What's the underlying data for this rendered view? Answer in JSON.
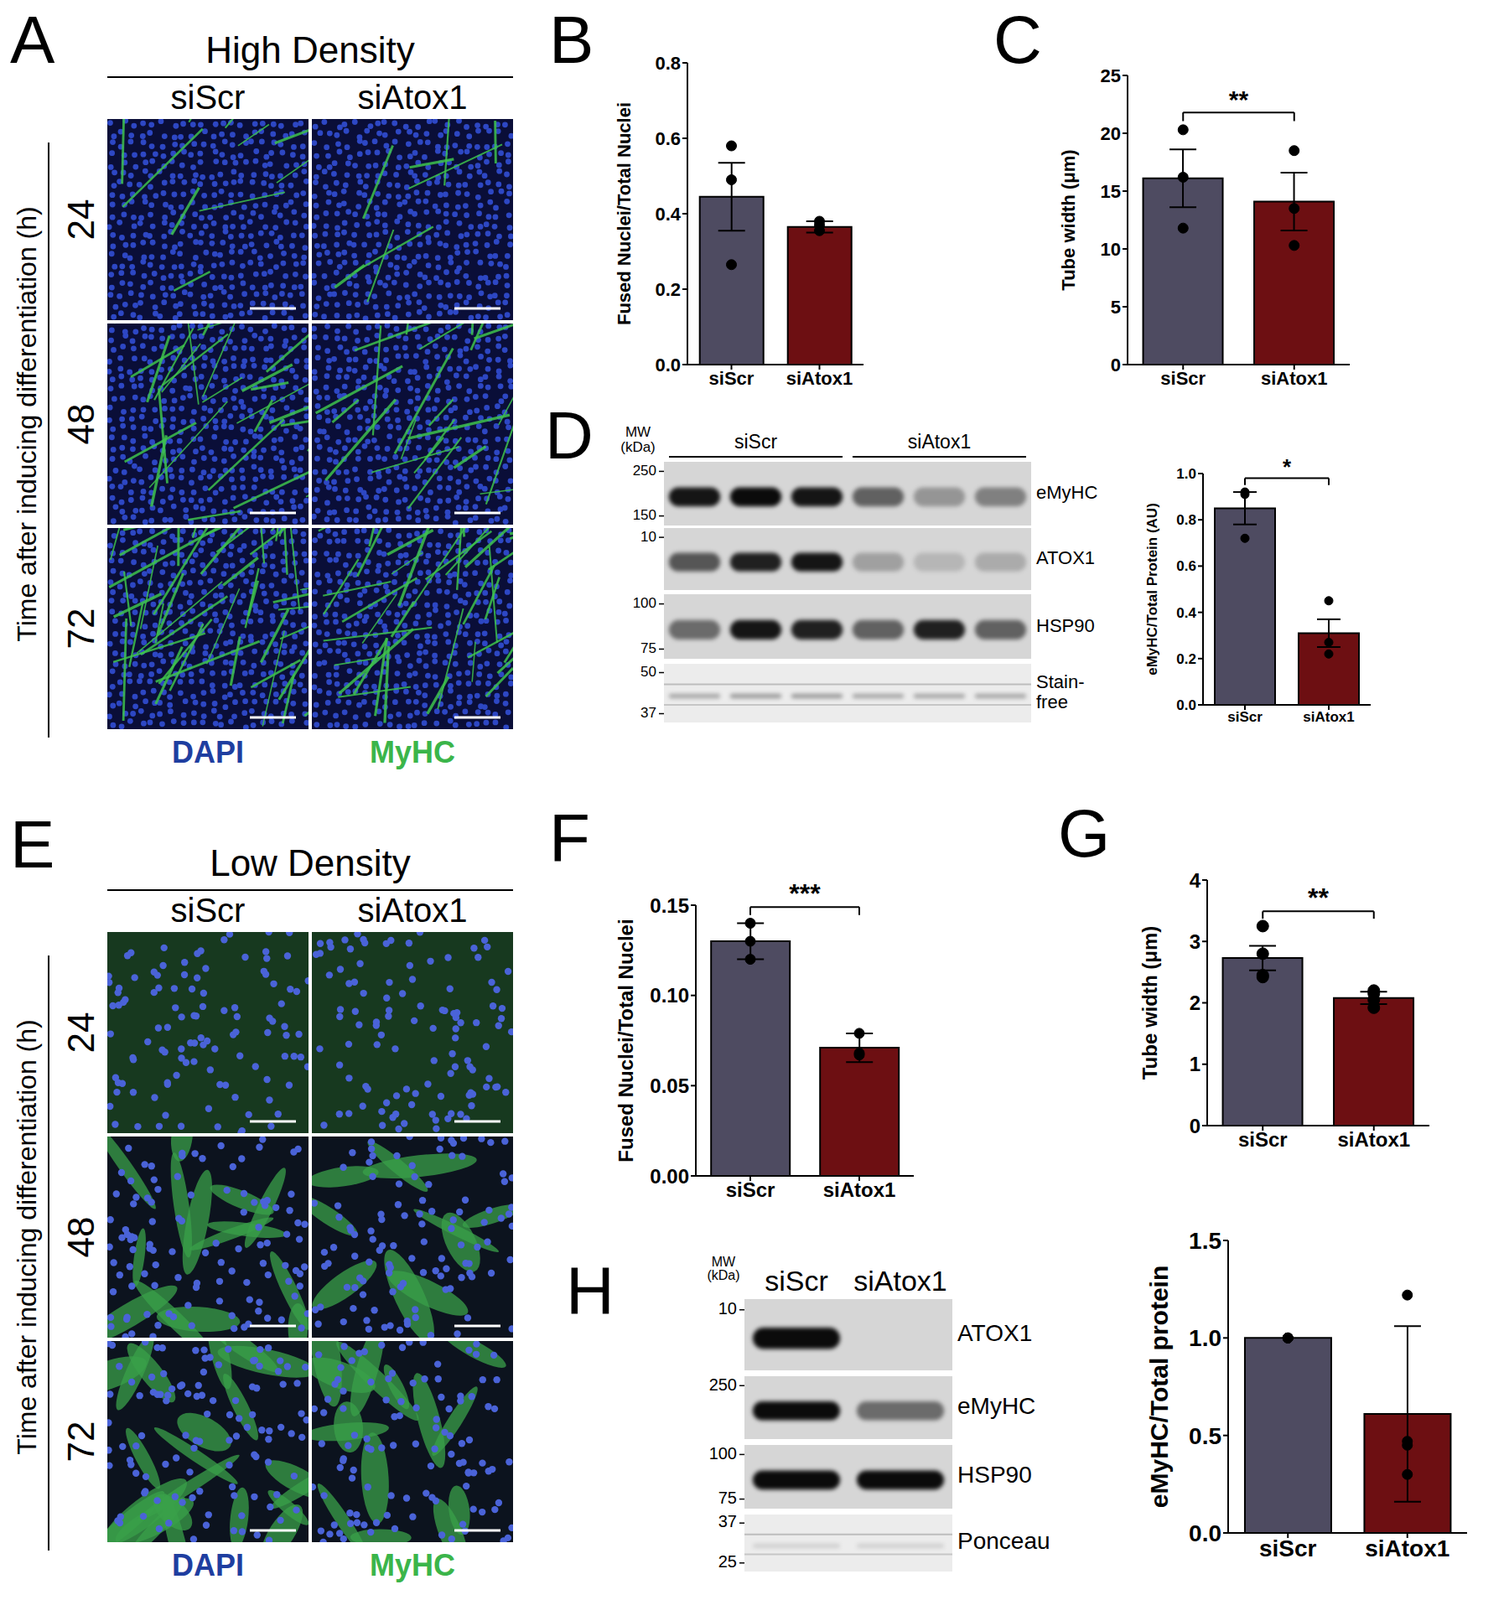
{
  "chart_data": [
    {
      "panel": "B",
      "type": "bar",
      "y_label": "Fused Nuclei/Total Nuclei",
      "categories": [
        "siScr",
        "siAtox1"
      ],
      "values": [
        0.445,
        0.365
      ],
      "errors": [
        0.09,
        0.015
      ],
      "points": [
        [
          0.58,
          0.49,
          0.265
        ],
        [
          0.38,
          0.37,
          0.355
        ]
      ],
      "colors": [
        "#4e4b61",
        "#6d0f12"
      ],
      "ylim": [
        0,
        0.8
      ],
      "yticks": [
        {
          "value": 0,
          "label": "0.0"
        },
        0.2,
        0.4,
        0.6,
        0.8
      ]
    },
    {
      "panel": "C",
      "type": "bar",
      "y_label": "Tube width (μm)",
      "categories": [
        "siScr",
        "siAtox1"
      ],
      "values": [
        16.1,
        14.1
      ],
      "errors": [
        2.5,
        2.5
      ],
      "points": [
        [
          20.3,
          16.2,
          11.8
        ],
        [
          18.5,
          13.5,
          10.3
        ]
      ],
      "colors": [
        "#4e4b61",
        "#6d0f12"
      ],
      "ylim": [
        0,
        25
      ],
      "yticks": [
        0,
        5,
        10,
        15,
        20,
        25
      ],
      "significance": "**"
    },
    {
      "panel": "D",
      "type": "bar",
      "y_label": "eMyHC/Total Protein (AU)",
      "categories": [
        "siScr",
        "siAtox1"
      ],
      "values": [
        0.85,
        0.31
      ],
      "errors": [
        0.07,
        0.06
      ],
      "points": [
        [
          0.92,
          0.91,
          0.72
        ],
        [
          0.45,
          0.27,
          0.22
        ]
      ],
      "colors": [
        "#4e4b61",
        "#6d0f12"
      ],
      "ylim": [
        0,
        1
      ],
      "yticks": [
        {
          "value": 0,
          "label": "0.0"
        },
        0.2,
        0.4,
        0.6,
        0.8,
        {
          "value": 1,
          "label": "1.0"
        }
      ],
      "significance": "*"
    },
    {
      "panel": "F",
      "type": "bar",
      "y_label": "Fused Nuclei/Total Nuclei",
      "categories": [
        "siScr",
        "siAtox1"
      ],
      "values": [
        0.13,
        0.071
      ],
      "errors": [
        0.01,
        0.008
      ],
      "points": [
        [
          0.14,
          0.13,
          0.12
        ],
        [
          0.079,
          0.068,
          0.067
        ]
      ],
      "colors": [
        "#4e4b61",
        "#6d0f12"
      ],
      "ylim": [
        0,
        0.15
      ],
      "yticks": [
        {
          "value": 0,
          "label": "0.00"
        },
        0.05,
        {
          "value": 0.1,
          "label": "0.10"
        },
        0.15
      ],
      "significance": "***"
    },
    {
      "panel": "G",
      "type": "bar",
      "y_label": "Tube width (μm)",
      "categories": [
        "siScr",
        "siAtox1"
      ],
      "values": [
        2.73,
        2.08
      ],
      "errors": [
        0.2,
        0.1
      ],
      "points": [
        [
          3.25,
          2.8,
          2.45,
          2.42
        ],
        [
          2.2,
          2.15,
          2.05,
          1.92
        ]
      ],
      "colors": [
        "#4e4b61",
        "#6d0f12"
      ],
      "ylim": [
        0,
        4
      ],
      "yticks": [
        0,
        1,
        2,
        3,
        4
      ],
      "significance": "**"
    },
    {
      "panel": "H",
      "type": "bar",
      "y_label": "eMyHC/Total protein",
      "categories": [
        "siScr",
        "siAtox1"
      ],
      "values": [
        1.0,
        0.61
      ],
      "errors": [
        0,
        0.45
      ],
      "points": [
        [
          1,
          1,
          1,
          1
        ],
        [
          1.22,
          0.47,
          0.45,
          0.3
        ]
      ],
      "colors": [
        "#4e4b61",
        "#6d0f12"
      ],
      "ylim": [
        0,
        1.5
      ],
      "yticks": [
        {
          "value": 0,
          "label": "0.0"
        },
        0.5,
        {
          "value": 1,
          "label": "1.0"
        },
        1.5
      ]
    }
  ],
  "images": [
    {
      "panel": "A",
      "title": "High Density",
      "columns": [
        "siScr",
        "siAtox1"
      ],
      "rows": [
        "24",
        "48",
        "72"
      ],
      "row_label": "Time after inducing differentiation (h)",
      "legend": [
        {
          "name": "DAPI",
          "color": "#1f3ea0"
        },
        {
          "name": "MyHC",
          "color": "#3bb54a"
        }
      ]
    },
    {
      "panel": "E",
      "title": "Low Density",
      "columns": [
        "siScr",
        "siAtox1"
      ],
      "rows": [
        "24",
        "48",
        "72"
      ],
      "row_label": "Time after inducing differentiation (h)",
      "legend": [
        {
          "name": "DAPI",
          "color": "#1f3ea0"
        },
        {
          "name": "MyHC",
          "color": "#3bb54a"
        }
      ]
    }
  ],
  "blots": [
    {
      "panel": "D",
      "mw_label": [
        "MW",
        "(kDa)"
      ],
      "groups": [
        {
          "name": "siScr",
          "lanes": 3
        },
        {
          "name": "siAtox1",
          "lanes": 3
        }
      ],
      "rows": [
        {
          "name": "eMyHC",
          "markers": [
            250,
            150
          ],
          "bands": [
            0.9,
            0.95,
            0.9,
            0.55,
            0.3,
            0.4
          ]
        },
        {
          "name": "ATOX1",
          "markers": [
            10
          ],
          "bands": [
            0.6,
            0.85,
            0.9,
            0.25,
            0.15,
            0.2
          ]
        },
        {
          "name": "HSP90",
          "markers": [
            100,
            75
          ],
          "bands": [
            0.5,
            0.9,
            0.85,
            0.55,
            0.85,
            0.55
          ]
        },
        {
          "name": "Stain-free",
          "markers": [
            50,
            37
          ],
          "bands": [
            0.3,
            0.35,
            0.35,
            0.3,
            0.3,
            0.3
          ]
        }
      ]
    },
    {
      "panel": "H",
      "mw_label": [
        "MW",
        "(kDa)"
      ],
      "groups": [
        {
          "name": "siScr",
          "lanes": 1
        },
        {
          "name": "siAtox1",
          "lanes": 1
        }
      ],
      "rows": [
        {
          "name": "ATOX1",
          "markers": [
            10
          ],
          "bands": [
            0.95,
            0
          ]
        },
        {
          "name": "eMyHC",
          "markers": [
            250
          ],
          "bands": [
            0.95,
            0.5
          ]
        },
        {
          "name": "HSP90",
          "markers": [
            100,
            75
          ],
          "bands": [
            0.95,
            0.95
          ]
        },
        {
          "name": "Ponceau",
          "markers": [
            37,
            25
          ],
          "bands": [
            0.12,
            0.12
          ]
        }
      ]
    }
  ]
}
